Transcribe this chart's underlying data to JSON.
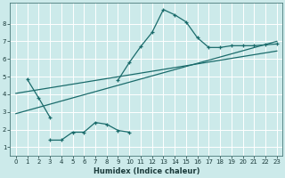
{
  "xlabel": "Humidex (Indice chaleur)",
  "bg_color": "#cceaea",
  "grid_color": "#ffffff",
  "line_color": "#1a6b6b",
  "xlim": [
    -0.5,
    23.5
  ],
  "ylim": [
    0.5,
    9.2
  ],
  "xticks": [
    0,
    1,
    2,
    3,
    4,
    5,
    6,
    7,
    8,
    9,
    10,
    11,
    12,
    13,
    14,
    15,
    16,
    17,
    18,
    19,
    20,
    21,
    22,
    23
  ],
  "yticks": [
    1,
    2,
    3,
    4,
    5,
    6,
    7,
    8
  ],
  "l1x": [
    1,
    2,
    3
  ],
  "l1y": [
    4.85,
    3.8,
    2.7
  ],
  "l2x": [
    3,
    4,
    5,
    6,
    7,
    8,
    9,
    10
  ],
  "l2y": [
    1.4,
    1.4,
    1.85,
    1.85,
    2.4,
    2.3,
    1.95,
    1.85
  ],
  "l3x": [
    9,
    10,
    11,
    12,
    13,
    14,
    15,
    16,
    17,
    18,
    19,
    20,
    21,
    22,
    23
  ],
  "l3y": [
    4.8,
    5.8,
    6.7,
    7.5,
    8.8,
    8.5,
    8.1,
    7.2,
    6.65,
    6.65,
    6.75,
    6.75,
    6.75,
    6.8,
    6.85
  ],
  "reg1x": [
    0,
    23
  ],
  "reg1y": [
    2.9,
    7.0
  ],
  "reg2x": [
    0,
    23
  ],
  "reg2y": [
    4.05,
    6.45
  ]
}
